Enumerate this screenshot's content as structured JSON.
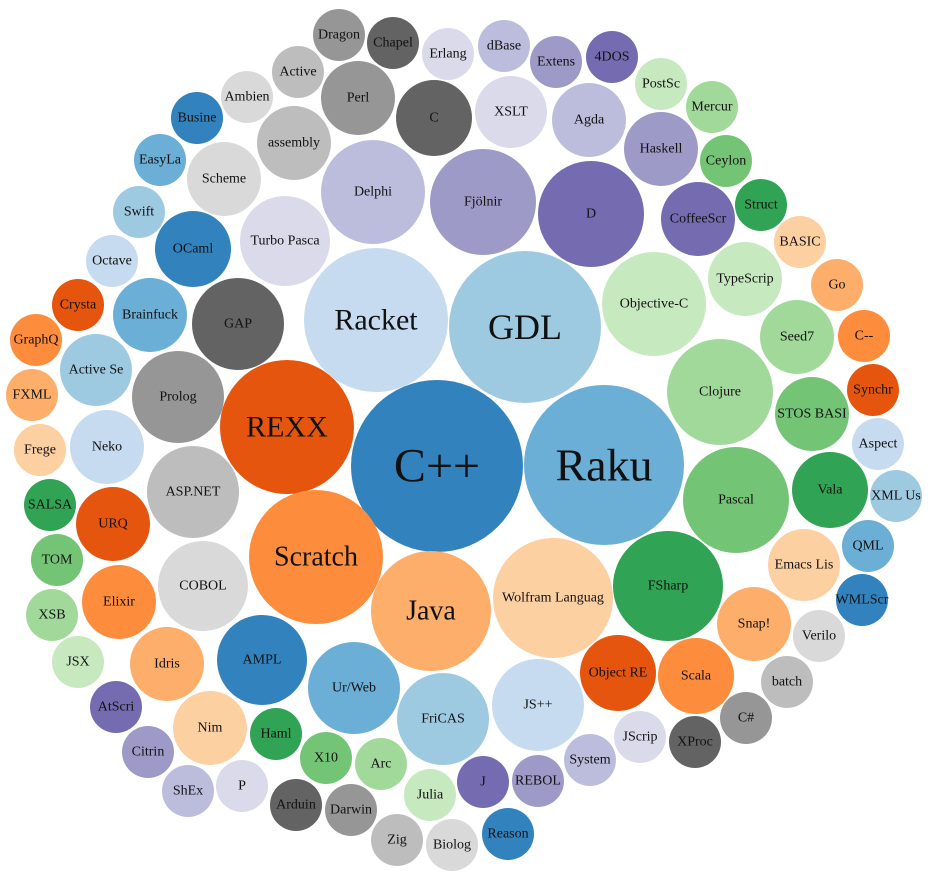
{
  "chart_data": {
    "type": "bubble",
    "title": "",
    "nodes": [
      {
        "label": "C++",
        "color": "#3182bd"
      },
      {
        "label": "Raku",
        "color": "#6baed6"
      },
      {
        "label": "GDL",
        "color": "#9ecae1"
      },
      {
        "label": "Racket",
        "color": "#c6dbef"
      },
      {
        "label": "REXX",
        "color": "#e6550d"
      },
      {
        "label": "Scratch",
        "color": "#fd8d3c"
      },
      {
        "label": "Java",
        "color": "#fdae6b"
      },
      {
        "label": "Wolfram Languag",
        "color": "#fdd0a2"
      },
      {
        "label": "FSharp",
        "color": "#31a354"
      },
      {
        "label": "Pascal",
        "color": "#74c476"
      },
      {
        "label": "Clojure",
        "color": "#a1d99b"
      },
      {
        "label": "Objective-C",
        "color": "#c7e9c0"
      },
      {
        "label": "D",
        "color": "#756bb1"
      },
      {
        "label": "Fjölnir",
        "color": "#9e9ac8"
      },
      {
        "label": "Delphi",
        "color": "#bcbddc"
      },
      {
        "label": "Turbo Pasca",
        "color": "#dadaeb"
      },
      {
        "label": "GAP",
        "color": "#636363"
      },
      {
        "label": "Prolog",
        "color": "#969696"
      },
      {
        "label": "ASP.NET",
        "color": "#bdbdbd"
      },
      {
        "label": "COBOL",
        "color": "#d9d9d9"
      },
      {
        "label": "AMPL",
        "color": "#3182bd"
      },
      {
        "label": "Ur/Web",
        "color": "#6baed6"
      },
      {
        "label": "FriCAS",
        "color": "#9ecae1"
      },
      {
        "label": "JS++",
        "color": "#c6dbef"
      },
      {
        "label": "Object RE",
        "color": "#e6550d"
      },
      {
        "label": "Scala",
        "color": "#fd8d3c"
      },
      {
        "label": "Snap!",
        "color": "#fdae6b"
      },
      {
        "label": "Emacs Lis",
        "color": "#fdd0a2"
      },
      {
        "label": "Vala",
        "color": "#31a354"
      },
      {
        "label": "STOS BASI",
        "color": "#74c476"
      },
      {
        "label": "Seed7",
        "color": "#a1d99b"
      },
      {
        "label": "TypeScrip",
        "color": "#c7e9c0"
      },
      {
        "label": "CoffeeScr",
        "color": "#756bb1"
      },
      {
        "label": "Haskell",
        "color": "#9e9ac8"
      },
      {
        "label": "Agda",
        "color": "#bcbddc"
      },
      {
        "label": "XSLT",
        "color": "#dadaeb"
      },
      {
        "label": "C",
        "color": "#636363"
      },
      {
        "label": "Perl",
        "color": "#969696"
      },
      {
        "label": "assembly",
        "color": "#bdbdbd"
      },
      {
        "label": "Scheme",
        "color": "#d9d9d9"
      },
      {
        "label": "OCaml",
        "color": "#3182bd"
      },
      {
        "label": "Brainfuck",
        "color": "#6baed6"
      },
      {
        "label": "Active Se",
        "color": "#9ecae1"
      },
      {
        "label": "Neko",
        "color": "#c6dbef"
      },
      {
        "label": "URQ",
        "color": "#e6550d"
      },
      {
        "label": "Elixir",
        "color": "#fd8d3c"
      },
      {
        "label": "Idris",
        "color": "#fdae6b"
      },
      {
        "label": "Nim",
        "color": "#fdd0a2"
      },
      {
        "label": "Haml",
        "color": "#31a354"
      },
      {
        "label": "X10",
        "color": "#74c476"
      },
      {
        "label": "Arc",
        "color": "#a1d99b"
      },
      {
        "label": "Julia",
        "color": "#c7e9c0"
      },
      {
        "label": "J",
        "color": "#756bb1"
      },
      {
        "label": "REBOL",
        "color": "#9e9ac8"
      },
      {
        "label": "System",
        "color": "#bcbddc"
      },
      {
        "label": "JScrip",
        "color": "#dadaeb"
      },
      {
        "label": "XProc",
        "color": "#636363"
      },
      {
        "label": "C#",
        "color": "#969696"
      },
      {
        "label": "batch",
        "color": "#bdbdbd"
      },
      {
        "label": "Verilo",
        "color": "#d9d9d9"
      },
      {
        "label": "WMLScr",
        "color": "#3182bd"
      },
      {
        "label": "QML",
        "color": "#6baed6"
      },
      {
        "label": "XML Us",
        "color": "#9ecae1"
      },
      {
        "label": "Aspect",
        "color": "#c6dbef"
      },
      {
        "label": "Synchr",
        "color": "#e6550d"
      },
      {
        "label": "C--",
        "color": "#fd8d3c"
      },
      {
        "label": "Go",
        "color": "#fdae6b"
      },
      {
        "label": "BASIC",
        "color": "#fdd0a2"
      },
      {
        "label": "Struct",
        "color": "#31a354"
      },
      {
        "label": "Ceylon",
        "color": "#74c476"
      },
      {
        "label": "Mercur",
        "color": "#a1d99b"
      },
      {
        "label": "PostSc",
        "color": "#c7e9c0"
      },
      {
        "label": "4DOS",
        "color": "#756bb1"
      },
      {
        "label": "Extens",
        "color": "#9e9ac8"
      },
      {
        "label": "dBase",
        "color": "#bcbddc"
      },
      {
        "label": "Erlang",
        "color": "#dadaeb"
      },
      {
        "label": "Chapel",
        "color": "#636363"
      },
      {
        "label": "Dragon",
        "color": "#969696"
      },
      {
        "label": "Active",
        "color": "#bdbdbd"
      },
      {
        "label": "Ambien",
        "color": "#d9d9d9"
      },
      {
        "label": "Busine",
        "color": "#3182bd"
      },
      {
        "label": "EasyLa",
        "color": "#6baed6"
      },
      {
        "label": "Swift",
        "color": "#9ecae1"
      },
      {
        "label": "Octave",
        "color": "#c6dbef"
      },
      {
        "label": "Crysta",
        "color": "#e6550d"
      },
      {
        "label": "GraphQ",
        "color": "#fd8d3c"
      },
      {
        "label": "FXML",
        "color": "#fdae6b"
      },
      {
        "label": "Frege",
        "color": "#fdd0a2"
      },
      {
        "label": "SALSA",
        "color": "#31a354"
      },
      {
        "label": "TOM",
        "color": "#74c476"
      },
      {
        "label": "XSB",
        "color": "#a1d99b"
      },
      {
        "label": "JSX",
        "color": "#c7e9c0"
      },
      {
        "label": "AtScri",
        "color": "#756bb1"
      },
      {
        "label": "Citrin",
        "color": "#9e9ac8"
      },
      {
        "label": "ShEx",
        "color": "#bcbddc"
      },
      {
        "label": "P",
        "color": "#dadaeb"
      },
      {
        "label": "Arduin",
        "color": "#636363"
      },
      {
        "label": "Darwin",
        "color": "#969696"
      },
      {
        "label": "Zig",
        "color": "#bdbdbd"
      },
      {
        "label": "Biolog",
        "color": "#d9d9d9"
      },
      {
        "label": "Reason",
        "color": "#3182bd"
      }
    ]
  }
}
